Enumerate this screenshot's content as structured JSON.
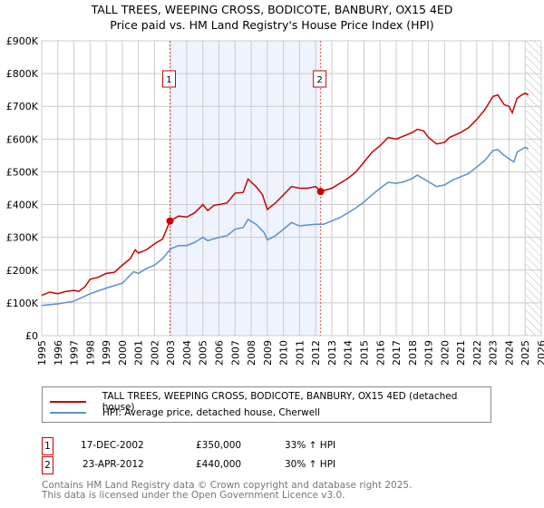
{
  "chart_data": {
    "type": "line",
    "title": "TALL TREES, WEEPING CROSS, BODICOTE, BANBURY, OX15 4ED",
    "subtitle": "Price paid vs. HM Land Registry's House Price Index (HPI)",
    "xlim": [
      1995,
      2026
    ],
    "ylim": [
      0,
      900000
    ],
    "x_ticks": [
      "1995",
      "1996",
      "1997",
      "1998",
      "1999",
      "2000",
      "2001",
      "2002",
      "2003",
      "2004",
      "2005",
      "2006",
      "2007",
      "2008",
      "2009",
      "2010",
      "2011",
      "2012",
      "2013",
      "2014",
      "2015",
      "2016",
      "2017",
      "2018",
      "2019",
      "2020",
      "2021",
      "2022",
      "2023",
      "2024",
      "2025",
      "2026"
    ],
    "y_ticks": [
      {
        "v": 0,
        "label": "£0"
      },
      {
        "v": 100000,
        "label": "£100K"
      },
      {
        "v": 200000,
        "label": "£200K"
      },
      {
        "v": 300000,
        "label": "£300K"
      },
      {
        "v": 400000,
        "label": "£400K"
      },
      {
        "v": 500000,
        "label": "£500K"
      },
      {
        "v": 600000,
        "label": "£600K"
      },
      {
        "v": 700000,
        "label": "£700K"
      },
      {
        "v": 800000,
        "label": "£800K"
      },
      {
        "v": 900000,
        "label": "£900K"
      }
    ],
    "grid": true,
    "shaded_range": [
      2002.96,
      2012.31
    ],
    "forecast_hatch_from": 2025.05,
    "series": [
      {
        "name": "TALL TREES, WEEPING CROSS, BODICOTE, BANBURY, OX15 4ED (detached house)",
        "color": "#cc0000",
        "x": [
          1995,
          1995.5,
          1996,
          1996.5,
          1997,
          1997.3,
          1997.7,
          1998,
          1998.5,
          1999,
          1999.5,
          2000,
          2000.5,
          2000.8,
          2001,
          2001.5,
          2002,
          2002.5,
          2002.96,
          2003.5,
          2004,
          2004.5,
          2005,
          2005.3,
          2005.7,
          2006,
          2006.5,
          2007,
          2007.5,
          2007.8,
          2008.3,
          2008.7,
          2009,
          2009.5,
          2010,
          2010.5,
          2011,
          2011.5,
          2012,
          2012.31,
          2013,
          2013.5,
          2014,
          2014.5,
          2015,
          2015.5,
          2016,
          2016.5,
          2017,
          2017.5,
          2018,
          2018.3,
          2018.7,
          2019,
          2019.5,
          2020,
          2020.3,
          2021,
          2021.5,
          2022,
          2022.5,
          2023,
          2023.3,
          2023.7,
          2024,
          2024.2,
          2024.5,
          2024.8,
          2025,
          2025.2
        ],
        "y": [
          123000,
          133000,
          128000,
          135000,
          138000,
          135000,
          150000,
          172000,
          178000,
          190000,
          193000,
          215000,
          235000,
          262000,
          252000,
          262000,
          280000,
          295000,
          350000,
          365000,
          362000,
          375000,
          400000,
          382000,
          398000,
          400000,
          405000,
          435000,
          437000,
          478000,
          455000,
          430000,
          385000,
          405000,
          430000,
          455000,
          450000,
          450000,
          455000,
          440000,
          450000,
          465000,
          480000,
          500000,
          530000,
          560000,
          580000,
          605000,
          600000,
          610000,
          620000,
          630000,
          625000,
          605000,
          585000,
          590000,
          605000,
          620000,
          635000,
          660000,
          690000,
          730000,
          735000,
          705000,
          700000,
          680000,
          725000,
          735000,
          740000,
          735000
        ]
      },
      {
        "name": "HPI: Average price, detached house, Cherwell",
        "color": "#5b8fd0",
        "x": [
          1995,
          1996,
          1997,
          1998,
          1999,
          2000,
          2000.7,
          2001,
          2001.5,
          2002,
          2002.5,
          2003,
          2003.5,
          2004,
          2004.5,
          2005,
          2005.3,
          2006,
          2006.5,
          2007,
          2007.5,
          2007.8,
          2008.3,
          2008.8,
          2009,
          2009.5,
          2010,
          2010.5,
          2011,
          2011.5,
          2012,
          2012.5,
          2013,
          2013.5,
          2014,
          2014.5,
          2015,
          2015.5,
          2016,
          2016.5,
          2017,
          2017.5,
          2018,
          2018.3,
          2019,
          2019.5,
          2020,
          2020.5,
          2021,
          2021.5,
          2022,
          2022.5,
          2023,
          2023.3,
          2023.7,
          2024,
          2024.3,
          2024.5,
          2025,
          2025.2
        ],
        "y": [
          92000,
          97000,
          105000,
          128000,
          145000,
          160000,
          195000,
          190000,
          205000,
          215000,
          235000,
          265000,
          275000,
          275000,
          285000,
          300000,
          290000,
          300000,
          305000,
          325000,
          330000,
          355000,
          340000,
          315000,
          292000,
          305000,
          325000,
          345000,
          335000,
          338000,
          340000,
          340000,
          350000,
          360000,
          375000,
          390000,
          408000,
          430000,
          450000,
          468000,
          465000,
          470000,
          480000,
          490000,
          470000,
          455000,
          460000,
          475000,
          485000,
          495000,
          515000,
          535000,
          565000,
          568000,
          550000,
          540000,
          530000,
          560000,
          575000,
          570000
        ]
      }
    ],
    "sales": [
      {
        "id": "1",
        "x": 2002.96,
        "y": 350000,
        "date": "17-DEC-2002",
        "price": "£350,000",
        "hpi": "33% ↑ HPI"
      },
      {
        "id": "2",
        "x": 2012.31,
        "y": 440000,
        "date": "23-APR-2012",
        "price": "£440,000",
        "hpi": "30% ↑ HPI"
      }
    ]
  },
  "footer": {
    "line1": "Contains HM Land Registry data © Crown copyright and database right 2025.",
    "line2": "This data is licensed under the Open Government Licence v3.0."
  }
}
